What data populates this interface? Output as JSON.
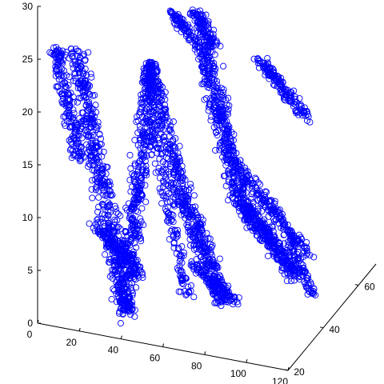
{
  "chart_data": {
    "type": "scatter",
    "title": "",
    "xlabel": "",
    "ylabel": "",
    "zlabel": "",
    "grid": false,
    "marker": "open-circle",
    "color": "#0000ff",
    "axes_color": "#000000",
    "xlim": [
      0,
      120
    ],
    "ylim": [
      20,
      70
    ],
    "zlim": [
      0,
      30
    ],
    "x_ticks": [
      "0",
      "20",
      "40",
      "60",
      "80",
      "100",
      "120"
    ],
    "y_ticks": [
      "20",
      "40",
      "60"
    ],
    "z_ticks": [
      "0",
      "5",
      "10",
      "15",
      "20",
      "25",
      "30"
    ],
    "series": [
      {
        "marker_count_visible": "dense point cloud",
        "clusters": [
          {
            "x": [
              8,
              32
            ],
            "y": [
              20,
              40
            ],
            "z": [
              2,
              27
            ]
          },
          {
            "x": [
              28,
              50
            ],
            "y": [
              22,
              44
            ],
            "z": [
              1,
              27
            ]
          },
          {
            "x": [
              48,
              78
            ],
            "y": [
              28,
              52
            ],
            "z": [
              2,
              26
            ]
          },
          {
            "x": [
              68,
              112
            ],
            "y": [
              34,
              60
            ],
            "z": [
              2,
              30
            ]
          },
          {
            "x": [
              96,
              120
            ],
            "y": [
              48,
              70
            ],
            "z": [
              16,
              27
            ]
          }
        ]
      }
    ]
  }
}
